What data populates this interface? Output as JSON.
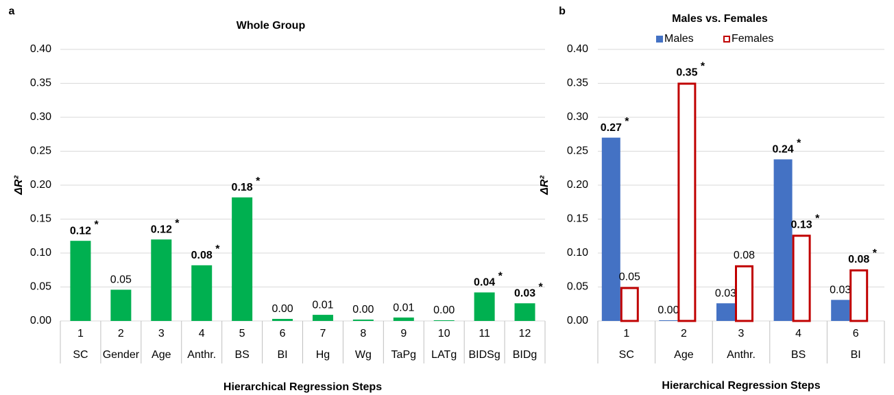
{
  "chart_data": [
    {
      "type": "bar",
      "panel_label": "a",
      "title": "Whole Group",
      "y_label": "ΔR²",
      "x_label": "Hierarchical Regression Steps",
      "categories": [
        "1",
        "2",
        "3",
        "4",
        "5",
        "6",
        "7",
        "8",
        "9",
        "10",
        "11",
        "12"
      ],
      "category_names": [
        "SC",
        "Gender",
        "Age",
        "Anthr.",
        "BS",
        "BI",
        "Hg",
        "Wg",
        "TaPg",
        "LATg",
        "BIDSg",
        "BIDg"
      ],
      "values": [
        0.118,
        0.046,
        0.12,
        0.082,
        0.182,
        0.003,
        0.009,
        0.002,
        0.005,
        0.001,
        0.042,
        0.026
      ],
      "value_labels": [
        "0.12",
        "0.05",
        "0.12",
        "0.08",
        "0.18",
        "0.00",
        "0.01",
        "0.00",
        "0.01",
        "0.00",
        "0.04",
        "0.03"
      ],
      "sig_labels": [
        "*",
        null,
        "*",
        "*",
        "*",
        null,
        null,
        null,
        null,
        null,
        "*",
        "*"
      ],
      "color": "#00b050",
      "ylim": [
        0,
        0.4
      ],
      "yticks": [
        {
          "value": 0,
          "label": "0.00"
        },
        {
          "value": 0.05,
          "label": "0.05"
        },
        {
          "value": 0.1,
          "label": "0.10"
        },
        {
          "value": 0.15,
          "label": "0.15"
        },
        {
          "value": 0.2,
          "label": "0.20"
        },
        {
          "value": 0.25,
          "label": "0.25"
        },
        {
          "value": 0.3,
          "label": "0.30"
        },
        {
          "value": 0.35,
          "label": "0.35"
        },
        {
          "value": 0.4,
          "label": "0.40"
        }
      ],
      "grid": true
    },
    {
      "type": "bar",
      "panel_label": "b",
      "title": "Males vs. Females",
      "y_label": "ΔR²",
      "x_label": "Hierarchical Regression Steps",
      "categories": [
        "1",
        "2",
        "3",
        "4",
        "6"
      ],
      "category_names": [
        "SC",
        "Age",
        "Anthr.",
        "BS",
        "BI"
      ],
      "series": [
        {
          "name": "Males",
          "color": "#4472c4",
          "style": "filled",
          "values": [
            0.27,
            0.001,
            0.026,
            0.238,
            0.031
          ],
          "value_labels": [
            "0.27",
            "0.00",
            "0.03",
            "0.24",
            "0.03"
          ],
          "sig_labels": [
            "*",
            null,
            null,
            "*",
            null
          ]
        },
        {
          "name": "Females",
          "color": "#c00000",
          "style": "outline",
          "values": [
            0.05,
            0.351,
            0.082,
            0.127,
            0.076
          ],
          "value_labels": [
            "0.05",
            "0.35",
            "0.08",
            "0.13",
            "0.08"
          ],
          "sig_labels": [
            null,
            "*",
            null,
            "*",
            "*"
          ]
        }
      ],
      "ylim": [
        0,
        0.4
      ],
      "yticks": [
        {
          "value": 0,
          "label": "0.00"
        },
        {
          "value": 0.05,
          "label": "0.05"
        },
        {
          "value": 0.1,
          "label": "0.10"
        },
        {
          "value": 0.15,
          "label": "0.15"
        },
        {
          "value": 0.2,
          "label": "0.20"
        },
        {
          "value": 0.25,
          "label": "0.25"
        },
        {
          "value": 0.3,
          "label": "0.30"
        },
        {
          "value": 0.35,
          "label": "0.35"
        },
        {
          "value": 0.4,
          "label": "0.40"
        }
      ],
      "grid": true
    }
  ]
}
